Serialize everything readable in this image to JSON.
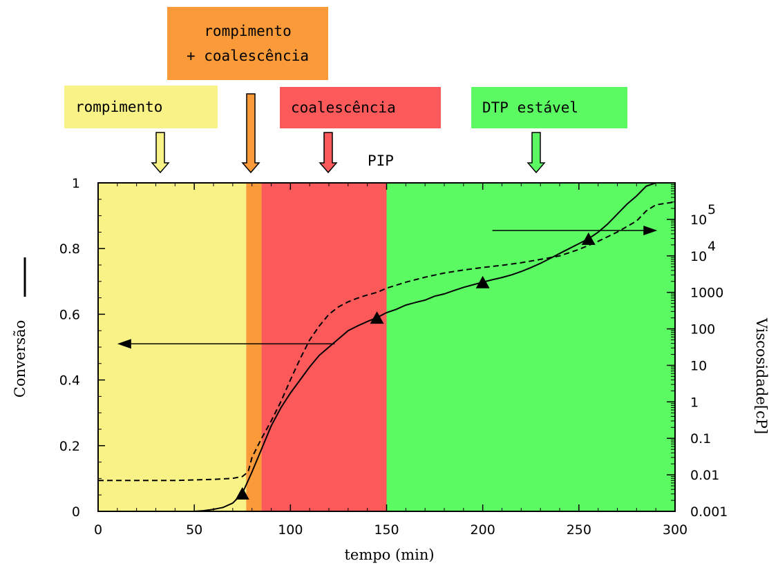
{
  "chart_data": {
    "type": "line",
    "xlabel": "tempo (min)",
    "ylabel": "Conversão",
    "y2label": "Viscosidade[cP]",
    "xlim": [
      0,
      300
    ],
    "ylim": [
      0,
      1
    ],
    "y2lim": [
      0.001,
      1000000
    ],
    "y2scale": "log",
    "x_ticks": [
      0,
      50,
      100,
      150,
      200,
      250,
      300
    ],
    "y_ticks": [
      0,
      0.2,
      0.4,
      0.6,
      0.8,
      1
    ],
    "y_tick_labels": [
      "0",
      "0.2",
      "0.4",
      "0.6",
      "0.8",
      "1"
    ],
    "y2_ticks": [
      {
        "value": 0.001,
        "label": "0.001"
      },
      {
        "value": 0.01,
        "label": "0.01"
      },
      {
        "value": 0.1,
        "label": "0.1"
      },
      {
        "value": 1,
        "label": "1"
      },
      {
        "value": 10,
        "label": "10"
      },
      {
        "value": 100,
        "label": "100"
      },
      {
        "value": 1000,
        "label": "1000"
      },
      {
        "value": 10000,
        "base": "10",
        "exp": "4"
      },
      {
        "value": 100000,
        "base": "10",
        "exp": "5"
      }
    ],
    "regions": [
      {
        "name": "rompimento",
        "x0": 0,
        "x1": 77,
        "color": "#f9f287"
      },
      {
        "name": "rompimento + coalescência",
        "x0": 77,
        "x1": 85,
        "color": "#fb9a38"
      },
      {
        "name": "coalescência",
        "x0": 85,
        "x1": 150,
        "color": "#fc5a5a"
      },
      {
        "name": "DTP estável",
        "x0": 150,
        "x1": 300,
        "color": "#5cfa62"
      }
    ],
    "series": [
      {
        "axis": "left",
        "style": "solid",
        "x": [
          50,
          55,
          60,
          65,
          70,
          75,
          80,
          85,
          90,
          95,
          100,
          105,
          110,
          115,
          120,
          125,
          130,
          135,
          140,
          145,
          150,
          155,
          160,
          165,
          170,
          175,
          180,
          185,
          190,
          195,
          200,
          205,
          210,
          215,
          220,
          225,
          230,
          235,
          240,
          245,
          250,
          255,
          260,
          265,
          270,
          275,
          280,
          285,
          290,
          300
        ],
        "y": [
          0.0,
          0.002,
          0.006,
          0.012,
          0.025,
          0.055,
          0.12,
          0.19,
          0.26,
          0.315,
          0.36,
          0.4,
          0.44,
          0.475,
          0.5,
          0.525,
          0.55,
          0.565,
          0.578,
          0.59,
          0.605,
          0.615,
          0.628,
          0.636,
          0.643,
          0.655,
          0.662,
          0.672,
          0.682,
          0.69,
          0.698,
          0.705,
          0.712,
          0.72,
          0.73,
          0.742,
          0.755,
          0.77,
          0.785,
          0.8,
          0.815,
          0.83,
          0.85,
          0.875,
          0.905,
          0.935,
          0.96,
          0.99,
          1.0,
          1.0
        ]
      },
      {
        "axis": "right",
        "style": "dashed",
        "x": [
          0,
          20,
          40,
          60,
          70,
          75,
          78,
          80,
          85,
          90,
          95,
          100,
          105,
          110,
          115,
          120,
          125,
          130,
          135,
          140,
          145,
          150,
          160,
          170,
          180,
          190,
          200,
          210,
          220,
          230,
          240,
          250,
          260,
          270,
          280,
          285,
          290,
          300
        ],
        "y": [
          0.007,
          0.007,
          0.007,
          0.0075,
          0.008,
          0.009,
          0.012,
          0.03,
          0.1,
          0.3,
          1.0,
          4,
          15,
          50,
          120,
          250,
          400,
          550,
          700,
          850,
          1000,
          1300,
          1900,
          2600,
          3400,
          4100,
          4800,
          5500,
          6500,
          8000,
          10000,
          15000,
          25000,
          45000,
          90000,
          170000,
          250000,
          300000
        ]
      }
    ],
    "annotations": {
      "boxes": [
        {
          "name": "rompimento",
          "lines": [
            "rompimento"
          ],
          "color": "#f9f287"
        },
        {
          "name": "rompimento-coalescencia",
          "lines": [
            "rompimento",
            "+ coalescência"
          ],
          "color": "#fb9a38"
        },
        {
          "name": "coalescencia",
          "lines": [
            "coalescência"
          ],
          "color": "#fc5a5a"
        },
        {
          "name": "dtp-estavel",
          "lines": [
            "DTP estável"
          ],
          "color": "#5cfa62"
        }
      ],
      "pip_label": "PIP",
      "markers_x": [
        75,
        145,
        200,
        255
      ]
    }
  }
}
